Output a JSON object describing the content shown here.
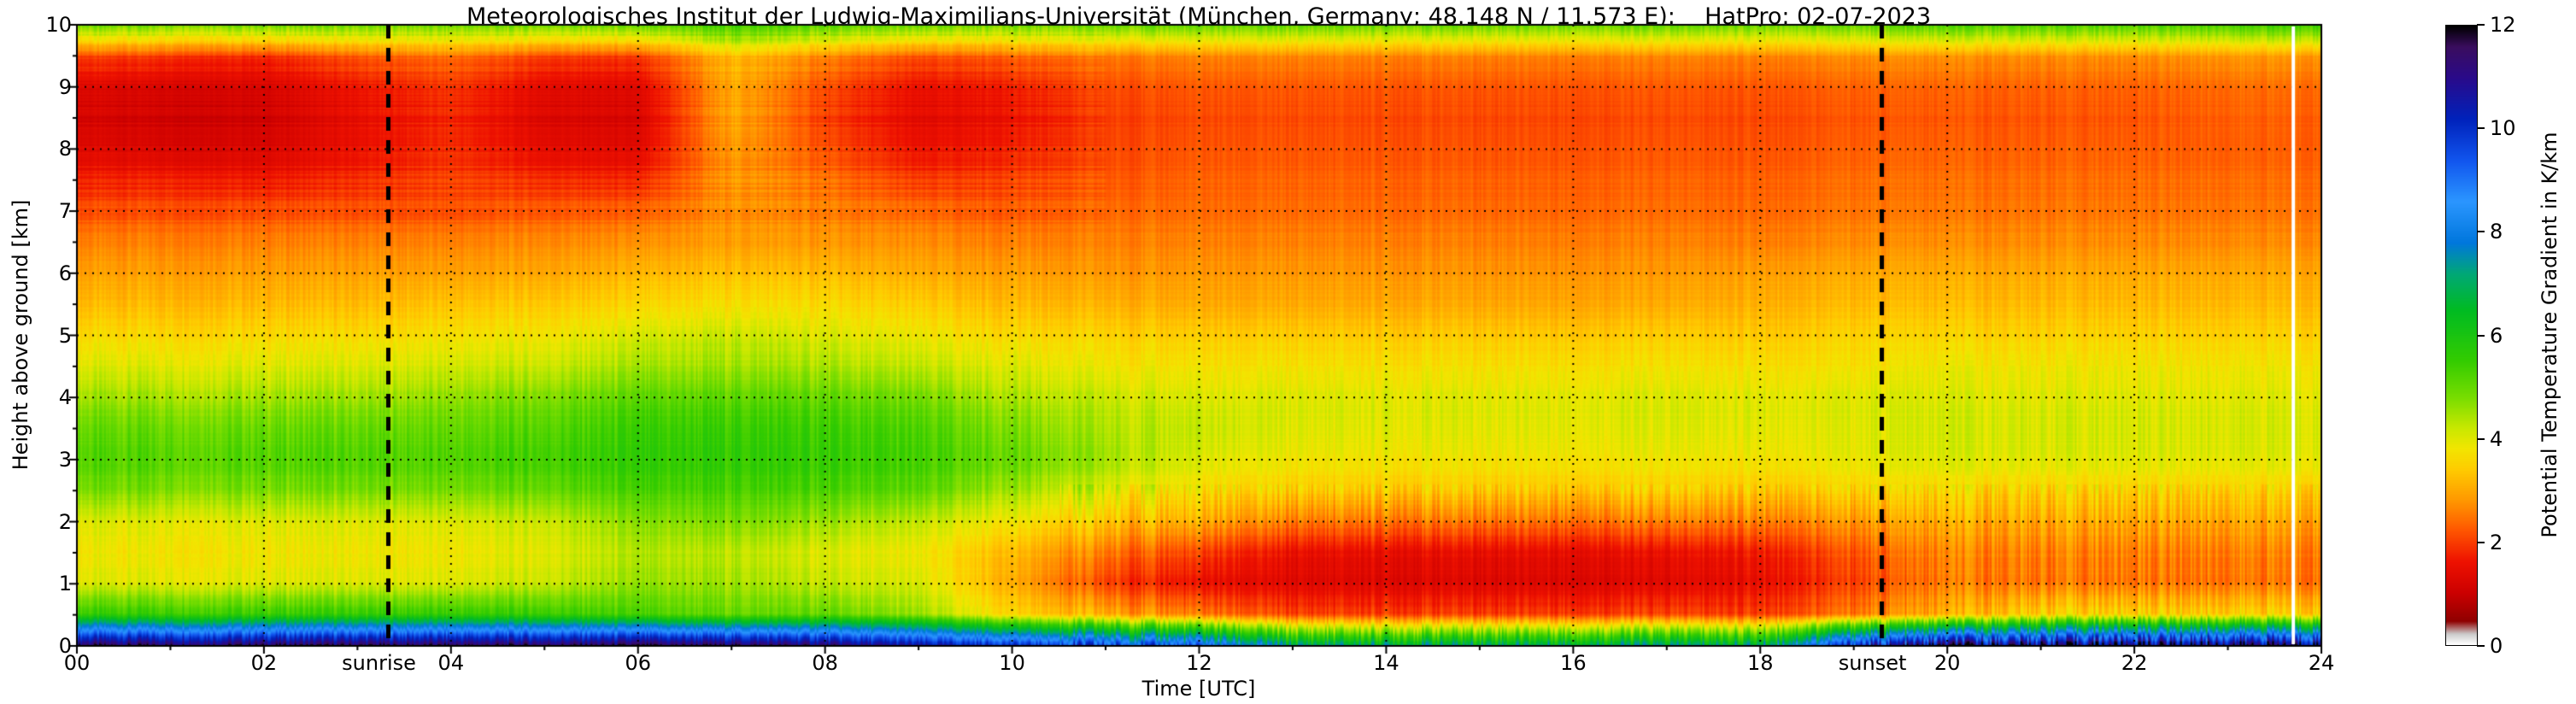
{
  "chart_data": {
    "type": "heatmap",
    "title": "Meteorologisches Institut der Ludwig-Maximilians-Universität (München, Germany; 48.148 N / 11.573 E):    HatPro: 02-07-2023",
    "xlabel": "Time [UTC]",
    "ylabel": "Height above ground [km]",
    "colorbar_label": "Potential Temperature Gradient in K/km",
    "x_range": [
      0,
      24
    ],
    "y_range": [
      0,
      10
    ],
    "value_range": [
      0,
      12
    ],
    "x_ticks": [
      "00",
      "02",
      "04",
      "06",
      "08",
      "10",
      "12",
      "14",
      "16",
      "18",
      "20",
      "22",
      "24"
    ],
    "y_ticks": [
      "0",
      "1",
      "2",
      "3",
      "4",
      "5",
      "6",
      "7",
      "8",
      "9",
      "10"
    ],
    "colorbar_ticks": [
      "0",
      "2",
      "4",
      "6",
      "8",
      "10",
      "12"
    ],
    "grid_style": "dotted black, vertical every 2 h, horizontal every 1 km",
    "annotations": {
      "sunrise": {
        "label": "sunrise",
        "time": 3.33
      },
      "sunset": {
        "label": "sunset",
        "time": 19.3
      },
      "data_gap_time": 23.7
    },
    "colormap": [
      [
        0.0,
        "#ffffff"
      ],
      [
        0.2,
        "#cccccc"
      ],
      [
        0.45,
        "#8f0000"
      ],
      [
        1.0,
        "#cc0000"
      ],
      [
        1.6,
        "#ee1100"
      ],
      [
        2.2,
        "#ff5500"
      ],
      [
        2.8,
        "#ff9900"
      ],
      [
        3.4,
        "#ffcc00"
      ],
      [
        3.8,
        "#f2e600"
      ],
      [
        4.2,
        "#c8e800"
      ],
      [
        4.8,
        "#77dd00"
      ],
      [
        5.5,
        "#33cc00"
      ],
      [
        6.5,
        "#00bb22"
      ],
      [
        7.2,
        "#00a877"
      ],
      [
        7.8,
        "#0077dd"
      ],
      [
        8.6,
        "#2b96ff"
      ],
      [
        9.4,
        "#1155ee"
      ],
      [
        10.2,
        "#0022bb"
      ],
      [
        11.0,
        "#2a0a8a"
      ],
      [
        11.6,
        "#3a0d5e"
      ],
      [
        12.0,
        "#000000"
      ]
    ],
    "grid": {
      "times": [
        0,
        1,
        2,
        3,
        4,
        5,
        6,
        7,
        8,
        9,
        10,
        11,
        12,
        13,
        14,
        15,
        16,
        17,
        18,
        19,
        20,
        21,
        22,
        23,
        24
      ],
      "heights": [
        0,
        0.5,
        1,
        1.5,
        2,
        2.5,
        3,
        3.5,
        4,
        4.5,
        5,
        5.5,
        6,
        6.5,
        7,
        7.5,
        8,
        8.5,
        9,
        9.5,
        10
      ],
      "values": [
        [
          11.5,
          11.5,
          11.5,
          11.5,
          11.5,
          11.5,
          11.5,
          11.5,
          11.2,
          10.5,
          10.0,
          9.5,
          9.0,
          7.0,
          7.0,
          7.0,
          7.0,
          7.0,
          7.0,
          10.0,
          11.2,
          11.3,
          11.4,
          11.4,
          11.4
        ],
        [
          5.5,
          5.5,
          5.5,
          5.5,
          5.5,
          5.5,
          5.2,
          5.0,
          5.0,
          4.5,
          3.5,
          3.0,
          2.5,
          2.0,
          2.0,
          2.0,
          2.0,
          2.0,
          2.0,
          2.5,
          3.0,
          3.5,
          3.5,
          3.5,
          3.5
        ],
        [
          4.0,
          4.0,
          4.0,
          4.0,
          4.0,
          4.2,
          4.5,
          4.5,
          4.2,
          4.0,
          3.0,
          2.0,
          1.5,
          1.3,
          1.3,
          1.3,
          1.3,
          1.3,
          1.5,
          2.0,
          2.5,
          2.5,
          2.5,
          2.5,
          2.5
        ],
        [
          3.8,
          3.8,
          3.8,
          3.8,
          3.8,
          4.0,
          4.3,
          4.3,
          4.0,
          3.8,
          3.2,
          2.5,
          2.0,
          1.5,
          1.5,
          1.5,
          1.5,
          1.5,
          1.7,
          2.2,
          2.6,
          2.6,
          2.6,
          2.6,
          2.6
        ],
        [
          4.0,
          4.0,
          4.0,
          4.0,
          4.0,
          4.2,
          4.6,
          4.8,
          4.5,
          4.2,
          3.8,
          3.3,
          3.0,
          2.5,
          2.5,
          2.5,
          2.5,
          2.5,
          2.6,
          2.8,
          3.0,
          3.0,
          3.0,
          3.0,
          3.0
        ],
        [
          4.8,
          4.8,
          4.8,
          4.8,
          4.8,
          5.0,
          5.2,
          5.3,
          5.2,
          5.0,
          4.5,
          4.0,
          3.6,
          3.4,
          3.4,
          3.4,
          3.4,
          3.4,
          3.4,
          3.5,
          3.5,
          3.5,
          3.5,
          3.5,
          3.5
        ],
        [
          5.2,
          5.2,
          5.2,
          5.2,
          5.2,
          5.4,
          5.5,
          5.6,
          5.5,
          5.3,
          5.0,
          4.5,
          4.0,
          3.8,
          3.8,
          3.8,
          3.8,
          3.8,
          3.8,
          3.9,
          4.0,
          4.0,
          4.0,
          4.0,
          4.0
        ],
        [
          5.0,
          5.0,
          5.0,
          5.0,
          5.0,
          5.2,
          5.4,
          5.5,
          5.4,
          5.2,
          4.8,
          4.4,
          4.2,
          4.0,
          4.0,
          4.0,
          4.0,
          4.0,
          4.0,
          4.0,
          4.1,
          4.1,
          4.1,
          4.1,
          4.1
        ],
        [
          4.5,
          4.5,
          4.5,
          4.5,
          4.6,
          4.8,
          5.0,
          5.1,
          5.0,
          4.8,
          4.4,
          4.2,
          4.0,
          4.0,
          4.0,
          4.0,
          4.0,
          4.0,
          4.0,
          4.0,
          4.0,
          4.0,
          4.0,
          4.0,
          4.0
        ],
        [
          4.0,
          4.0,
          4.0,
          4.0,
          4.1,
          4.2,
          4.4,
          4.5,
          4.4,
          4.2,
          4.0,
          3.8,
          3.7,
          3.7,
          3.7,
          3.7,
          3.7,
          3.7,
          3.7,
          3.7,
          3.8,
          3.8,
          3.8,
          3.8,
          3.8
        ],
        [
          3.6,
          3.6,
          3.6,
          3.6,
          3.7,
          3.8,
          4.0,
          4.2,
          4.0,
          3.8,
          3.6,
          3.5,
          3.4,
          3.4,
          3.4,
          3.4,
          3.4,
          3.4,
          3.4,
          3.5,
          3.5,
          3.5,
          3.5,
          3.5,
          3.5
        ],
        [
          3.2,
          3.2,
          3.2,
          3.2,
          3.3,
          3.4,
          3.5,
          3.7,
          3.6,
          3.4,
          3.2,
          3.1,
          3.0,
          3.0,
          3.0,
          3.0,
          3.0,
          3.0,
          3.1,
          3.2,
          3.2,
          3.2,
          3.2,
          3.2,
          3.2
        ],
        [
          2.9,
          2.9,
          2.9,
          2.9,
          2.9,
          3.0,
          3.1,
          3.3,
          3.2,
          3.0,
          2.9,
          2.8,
          2.8,
          2.8,
          2.8,
          2.8,
          2.8,
          2.8,
          2.9,
          3.0,
          3.0,
          3.0,
          3.0,
          3.0,
          3.0
        ],
        [
          2.6,
          2.6,
          2.6,
          2.6,
          2.6,
          2.7,
          2.7,
          2.9,
          2.8,
          2.7,
          2.6,
          2.6,
          2.6,
          2.6,
          2.6,
          2.6,
          2.6,
          2.6,
          2.6,
          2.7,
          2.7,
          2.7,
          2.7,
          2.7,
          2.7
        ],
        [
          2.2,
          2.2,
          2.2,
          2.2,
          2.2,
          2.3,
          2.3,
          2.8,
          2.6,
          2.4,
          2.3,
          2.4,
          2.4,
          2.4,
          2.4,
          2.4,
          2.4,
          2.4,
          2.4,
          2.5,
          2.5,
          2.5,
          2.5,
          2.5,
          2.5
        ],
        [
          1.7,
          1.7,
          1.6,
          1.8,
          2.0,
          1.8,
          1.7,
          2.8,
          2.4,
          1.9,
          2.0,
          2.2,
          2.3,
          2.3,
          2.3,
          2.3,
          2.3,
          2.3,
          2.3,
          2.4,
          2.4,
          2.4,
          2.4,
          2.4,
          2.4
        ],
        [
          1.4,
          1.3,
          1.3,
          1.6,
          1.9,
          1.5,
          1.4,
          2.9,
          2.2,
          1.6,
          1.8,
          2.1,
          2.2,
          2.2,
          2.2,
          2.2,
          2.2,
          2.2,
          2.2,
          2.3,
          2.3,
          2.3,
          2.3,
          2.3,
          2.3
        ],
        [
          1.2,
          1.1,
          1.1,
          1.5,
          1.8,
          1.3,
          1.2,
          3.0,
          2.0,
          1.4,
          1.6,
          2.0,
          2.1,
          2.1,
          2.1,
          2.1,
          2.1,
          2.1,
          2.1,
          2.2,
          2.2,
          2.2,
          2.2,
          2.3,
          2.3
        ],
        [
          1.3,
          1.2,
          1.2,
          1.6,
          1.9,
          1.4,
          1.3,
          3.0,
          2.1,
          1.5,
          1.7,
          2.1,
          2.2,
          2.2,
          2.2,
          2.2,
          2.2,
          2.2,
          2.2,
          2.3,
          2.3,
          2.3,
          2.3,
          2.4,
          2.4
        ],
        [
          2.0,
          1.9,
          1.8,
          2.2,
          2.4,
          2.0,
          1.9,
          3.2,
          2.6,
          2.1,
          2.3,
          2.5,
          2.6,
          2.6,
          2.6,
          2.6,
          2.6,
          2.6,
          2.6,
          2.7,
          2.7,
          2.7,
          2.7,
          2.8,
          2.8
        ],
        [
          5.0,
          5.0,
          5.0,
          5.0,
          5.0,
          5.0,
          5.0,
          5.5,
          5.2,
          5.0,
          5.0,
          5.0,
          5.0,
          5.0,
          5.0,
          5.0,
          5.0,
          5.0,
          5.0,
          5.0,
          5.2,
          5.2,
          5.2,
          5.3,
          5.5
        ]
      ]
    }
  }
}
